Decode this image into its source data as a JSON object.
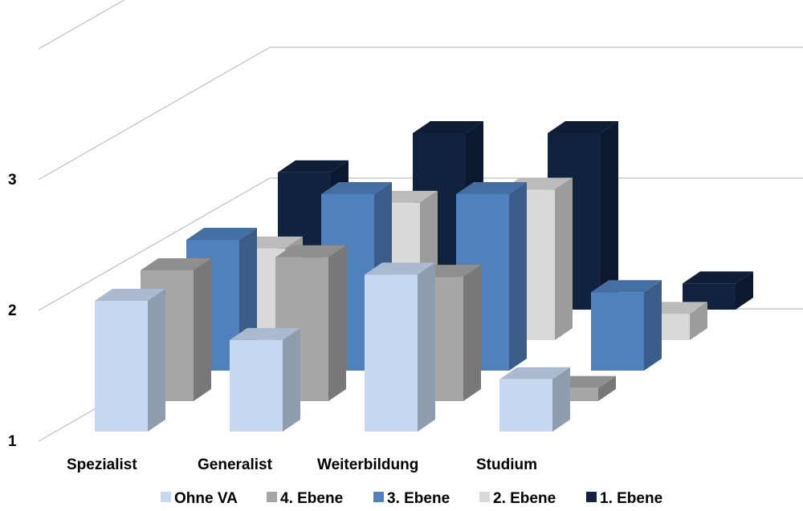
{
  "chart_data": {
    "type": "bar",
    "title": "",
    "xlabel": "",
    "ylabel": "",
    "ylim": [
      1,
      4
    ],
    "yticks": [
      1,
      2,
      3
    ],
    "grid": true,
    "legend_position": "bottom",
    "categories": [
      "Spezialist",
      "Generalist",
      "Weiterbildung",
      "Studium"
    ],
    "series": [
      {
        "name": "1. Ebene",
        "color": "#11223F",
        "values": [
          2.05,
          2.35,
          2.35,
          1.2
        ]
      },
      {
        "name": "2. Ebene",
        "color": "#D9D9D9",
        "values": [
          1.7,
          2.05,
          2.15,
          1.2
        ]
      },
      {
        "name": "3. Ebene",
        "color": "#4F81BD",
        "values": [
          2.0,
          2.35,
          2.35,
          1.6
        ]
      },
      {
        "name": "4. Ebene",
        "color": "#A6A6A6",
        "values": [
          2.0,
          2.1,
          1.95,
          1.1
        ]
      },
      {
        "name": "Ohne VA",
        "color": "#C6D9F1",
        "values": [
          2.0,
          1.7,
          2.2,
          1.4
        ]
      }
    ],
    "legend_order": [
      "Ohne VA",
      "4. Ebene",
      "3. Ebene",
      "2. Ebene",
      "1. Ebene"
    ]
  }
}
